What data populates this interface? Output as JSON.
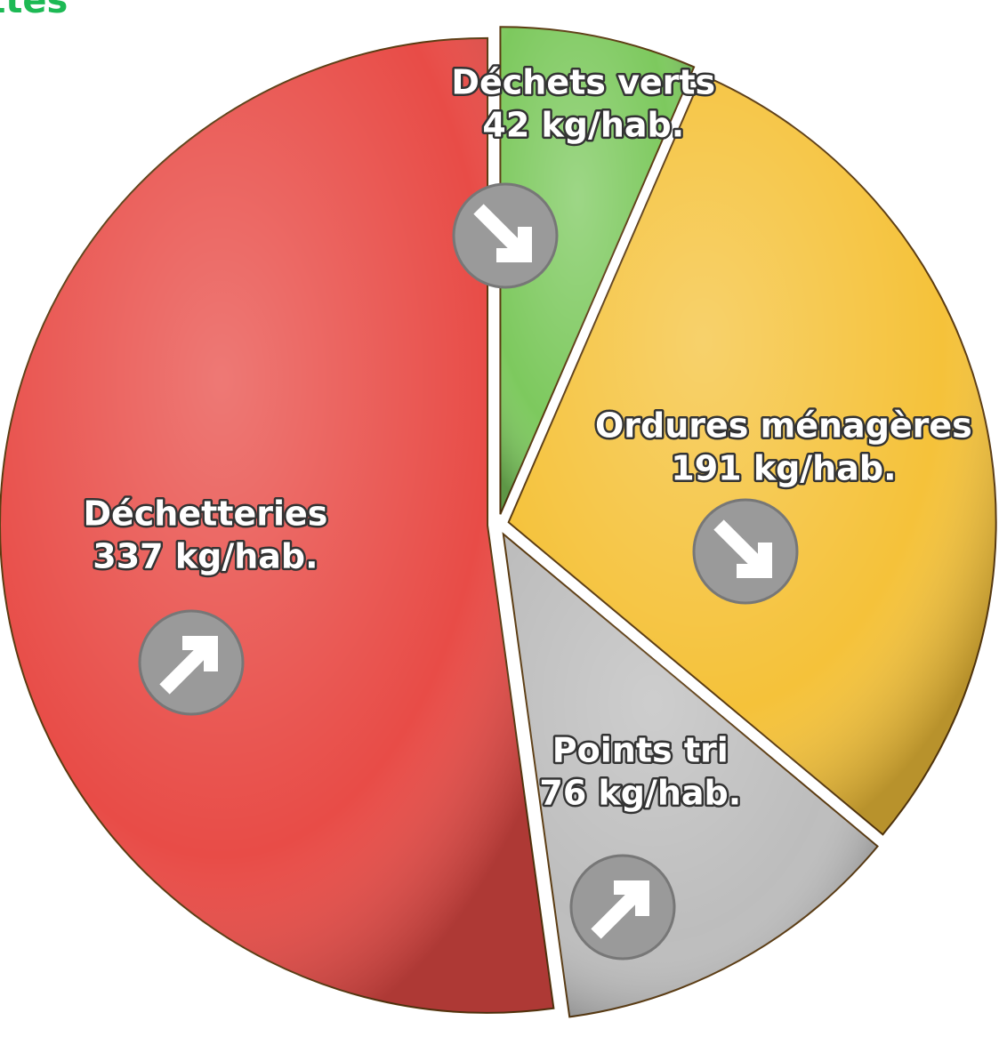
{
  "chart_data": {
    "type": "pie",
    "title": "ettes",
    "categories": [
      "Déchets verts",
      "Ordures ménagères",
      "Points tri",
      "Déchetteries"
    ],
    "values": [
      42,
      191,
      76,
      337
    ],
    "value_labels": [
      "42 kg/hab.",
      "191 kg/hab.",
      "76 kg/hab.",
      "337 kg/hab."
    ],
    "colors": [
      "#7dc95e",
      "#f5c23a",
      "#bdbdbd",
      "#e84c47"
    ]
  }
}
